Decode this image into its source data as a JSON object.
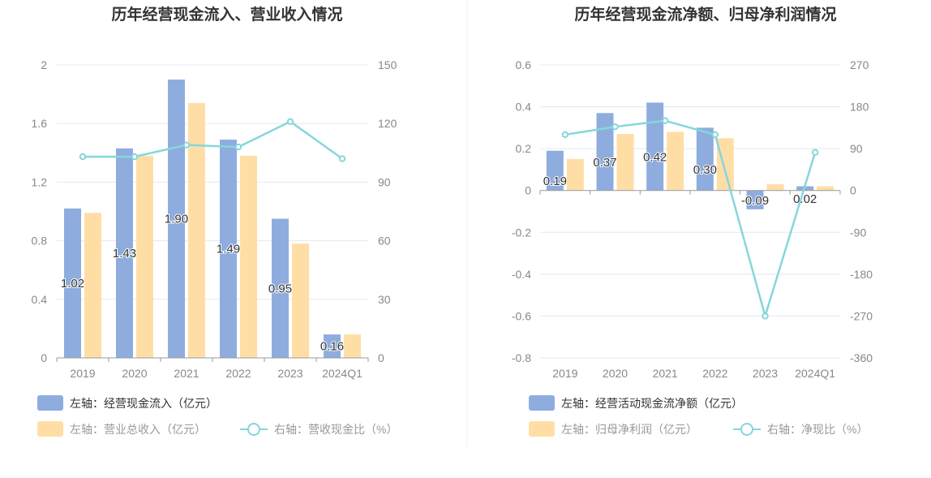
{
  "colors": {
    "bar_primary": "#8eadde",
    "bar_secondary": "#ffdea6",
    "line": "#86d6db",
    "axis": "#999999",
    "grid": "#e3e8f3"
  },
  "chart_data": [
    {
      "type": "bar",
      "title": "历年经营现金流入、营业收入情况",
      "categories": [
        "2019",
        "2020",
        "2021",
        "2022",
        "2023",
        "2024Q1"
      ],
      "left_axis": {
        "ticks": [
          "0",
          "0.4",
          "0.8",
          "1.2",
          "1.6",
          "2"
        ],
        "range": [
          0,
          2
        ]
      },
      "right_axis": {
        "ticks": [
          "0",
          "30",
          "60",
          "90",
          "120",
          "150"
        ],
        "range": [
          0,
          150
        ]
      },
      "series": [
        {
          "name": "左轴：经营现金流入（亿元）",
          "type": "bar",
          "axis": "left",
          "color": "#8eadde",
          "values": [
            1.02,
            1.43,
            1.9,
            1.49,
            0.95,
            0.16
          ],
          "labels": [
            "1.02",
            "1.43",
            "1.90",
            "1.49",
            "0.95",
            "0.16"
          ]
        },
        {
          "name": "左轴：营业总收入（亿元）",
          "type": "bar",
          "axis": "left",
          "color": "#ffdea6",
          "values": [
            0.99,
            1.38,
            1.74,
            1.38,
            0.78,
            0.16
          ]
        },
        {
          "name": "右轴：营收现金比（%）",
          "type": "line",
          "axis": "right",
          "color": "#86d6db",
          "values": [
            103,
            103,
            109,
            108,
            121,
            102
          ]
        }
      ],
      "legend_position": "bottom"
    },
    {
      "type": "bar",
      "title": "历年经营现金流净额、归母净利润情况",
      "categories": [
        "2019",
        "2020",
        "2021",
        "2022",
        "2023",
        "2024Q1"
      ],
      "left_axis": {
        "ticks": [
          "-0.8",
          "-0.6",
          "-0.4",
          "-0.2",
          "0",
          "0.2",
          "0.4",
          "0.6"
        ],
        "range": [
          -0.8,
          0.6
        ]
      },
      "right_axis": {
        "ticks": [
          "-360",
          "-270",
          "-180",
          "-90",
          "0",
          "90",
          "180",
          "270"
        ],
        "range": [
          -360,
          270
        ]
      },
      "series": [
        {
          "name": "左轴：经营活动现金流净额（亿元）",
          "type": "bar",
          "axis": "left",
          "color": "#8eadde",
          "values": [
            0.19,
            0.37,
            0.42,
            0.3,
            -0.09,
            0.02
          ],
          "labels": [
            "0.19",
            "0.37",
            "0.42",
            "0.30",
            "-0.09",
            "0.02"
          ]
        },
        {
          "name": "左轴：归母净利润（亿元）",
          "type": "bar",
          "axis": "left",
          "color": "#ffdea6",
          "values": [
            0.15,
            0.27,
            0.28,
            0.25,
            0.03,
            0.02
          ]
        },
        {
          "name": "右轴：净现比（%）",
          "type": "line",
          "axis": "right",
          "color": "#86d6db",
          "values": [
            120,
            137,
            150,
            120,
            -270,
            82
          ]
        }
      ],
      "legend_position": "bottom"
    }
  ]
}
